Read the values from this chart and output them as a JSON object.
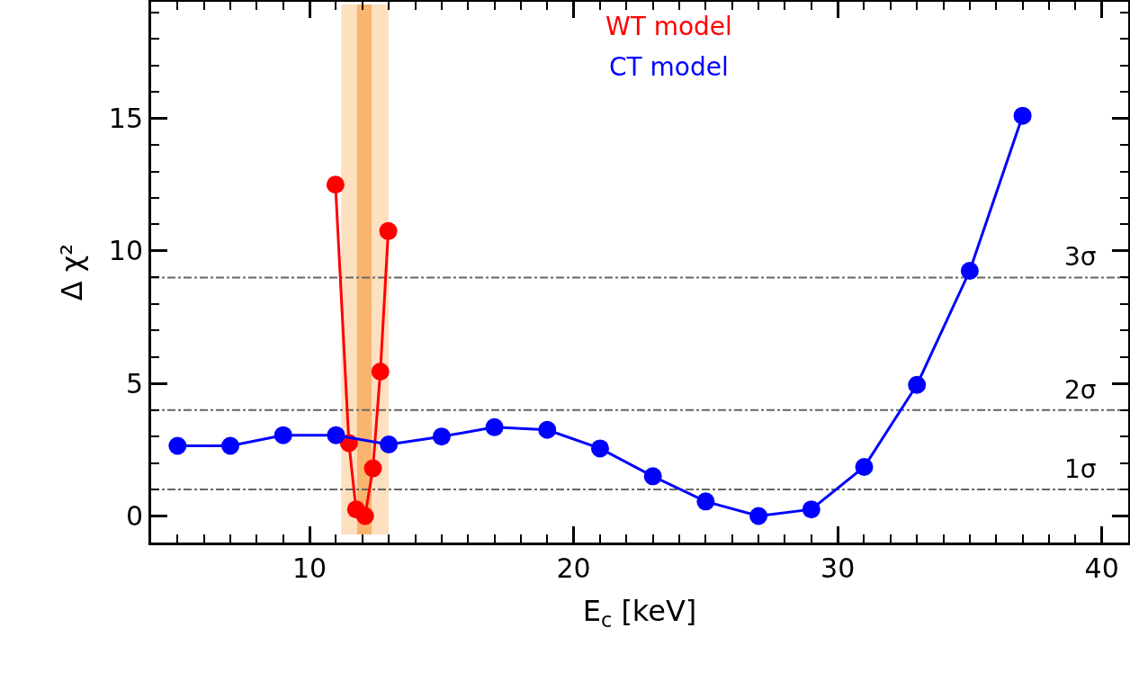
{
  "chart_data": {
    "type": "line",
    "xlabel": "E$_{c}$ [keV]",
    "ylabel": "Δ χ²",
    "xlim": [
      4,
      41
    ],
    "xticks": [
      10,
      20,
      30,
      40
    ],
    "ylim": [
      -1,
      19.4
    ],
    "yticks": [
      0,
      5,
      10,
      15
    ],
    "grid": false,
    "legend": false,
    "marker": "circle",
    "line_style": "solid",
    "series": [
      {
        "name": "WT model",
        "color": "#ff0000",
        "x": [
          10.98,
          11.49,
          11.76,
          12.1,
          12.4,
          12.68,
          12.98
        ],
        "values": [
          12.5,
          2.75,
          0.25,
          0.0,
          1.8,
          5.45,
          10.75
        ]
      },
      {
        "name": "CT model",
        "color": "#0000ff",
        "x": [
          5,
          7,
          9,
          11,
          13,
          15,
          17,
          19,
          21,
          23,
          25,
          27,
          29,
          31,
          33,
          35,
          37
        ],
        "values": [
          2.65,
          2.65,
          3.05,
          3.05,
          2.7,
          3.0,
          3.35,
          3.25,
          2.55,
          1.5,
          0.55,
          0.0,
          0.25,
          1.85,
          4.95,
          9.25,
          15.1
        ]
      }
    ],
    "ref_lines": [
      {
        "axis": "y",
        "value": 1,
        "label": "1σ",
        "color": "#666666",
        "line_style": "dashdot"
      },
      {
        "axis": "y",
        "value": 4,
        "label": "2σ",
        "color": "#666666",
        "line_style": "dashdot"
      },
      {
        "axis": "y",
        "value": 9,
        "label": "3σ",
        "color": "#666666",
        "line_style": "dashdot"
      }
    ],
    "bands": [
      {
        "axis": "x",
        "from": 11.2,
        "to": 13.0,
        "color": "#fde0c0"
      },
      {
        "axis": "x",
        "from": 11.8,
        "to": 12.35,
        "color": "#f9b46e"
      }
    ]
  }
}
